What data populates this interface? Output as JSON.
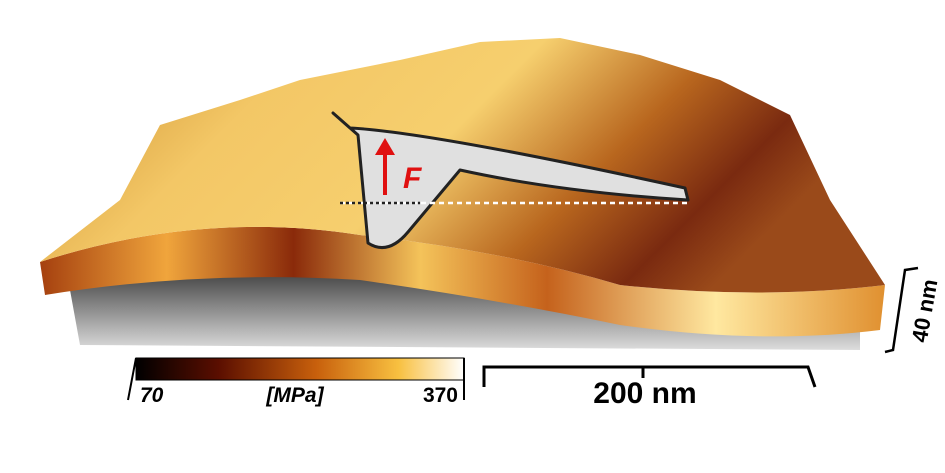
{
  "force_label": "F",
  "colorbar": {
    "min": 70,
    "unit": "[MPa]",
    "max": 370
  },
  "scale_bar": {
    "label": "200 nm"
  },
  "height_bar": {
    "label": "40 nm"
  }
}
